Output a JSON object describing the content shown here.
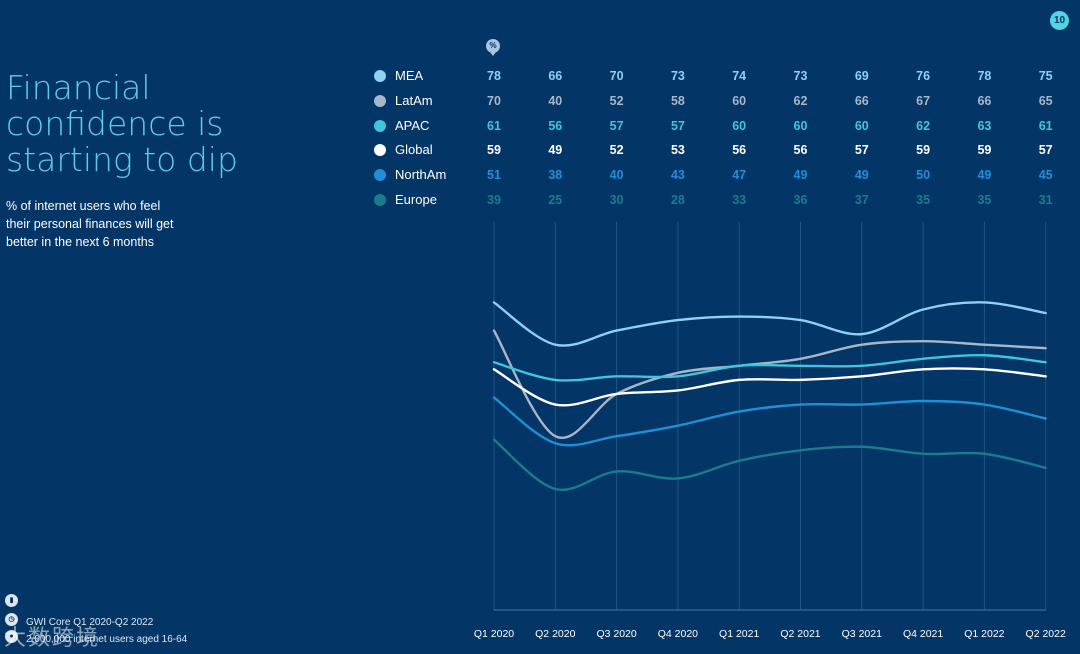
{
  "page": {
    "title_lines": [
      "Financial",
      "confidence is",
      "starting to dip"
    ],
    "subtitle_lines": [
      "% of internet users who feel",
      "their personal finances will get",
      "better in the next 6 months"
    ],
    "page_number": "10",
    "unit_badge": "%",
    "source": [
      "GWI Core Q1 2020-Q2 2022",
      "2,000,000 internet users aged 16-64"
    ],
    "watermark": "大数跨境"
  },
  "chart_data": {
    "type": "line",
    "title": "",
    "xlabel": "",
    "ylabel": "",
    "grid": "vertical",
    "legend_placement": "top-left",
    "categories": [
      "Q1 2020",
      "Q2 2020",
      "Q3 2020",
      "Q4 2020",
      "Q1 2021",
      "Q2 2021",
      "Q3 2021",
      "Q4 2021",
      "Q1 2022",
      "Q2 2022"
    ],
    "ylim": [
      0,
      100
    ],
    "series": [
      {
        "name": "MEA",
        "color": "#8fd0f5",
        "values": [
          78,
          66,
          70,
          73,
          74,
          73,
          69,
          76,
          78,
          75
        ]
      },
      {
        "name": "LatAm",
        "color": "#a9b6c8",
        "values": [
          70,
          40,
          52,
          58,
          60,
          62,
          66,
          67,
          66,
          65
        ]
      },
      {
        "name": "APAC",
        "color": "#3ec6de",
        "values": [
          61,
          56,
          57,
          57,
          60,
          60,
          60,
          62,
          63,
          61
        ]
      },
      {
        "name": "Global",
        "color": "#ffffff",
        "values": [
          59,
          49,
          52,
          53,
          56,
          56,
          57,
          59,
          59,
          57
        ]
      },
      {
        "name": "NorthAm",
        "color": "#1e90d6",
        "values": [
          51,
          38,
          40,
          43,
          47,
          49,
          49,
          50,
          49,
          45
        ]
      },
      {
        "name": "Europe",
        "color": "#1a7d8e",
        "values": [
          39,
          25,
          30,
          28,
          33,
          36,
          37,
          35,
          35,
          31
        ]
      }
    ]
  }
}
